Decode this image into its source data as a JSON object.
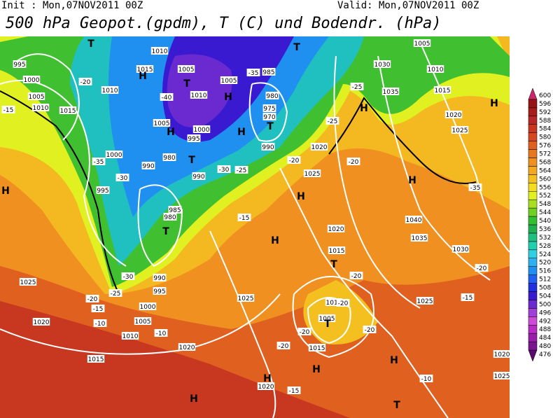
{
  "header": {
    "init": "Init : Mon,07NOV2011 00Z",
    "valid": "Valid: Mon,07NOV2011 00Z",
    "title": "500 hPa Geopot.(gpdm), T (C) und Bodendr. (hPa)"
  },
  "colorbar": {
    "levels": [
      476,
      480,
      484,
      488,
      492,
      496,
      500,
      504,
      508,
      512,
      516,
      520,
      524,
      528,
      532,
      536,
      540,
      544,
      548,
      552,
      556,
      560,
      564,
      568,
      572,
      576,
      580,
      584,
      588,
      592,
      596,
      600
    ],
    "colors": [
      "#5a0a6e",
      "#7a1490",
      "#9a1eaa",
      "#b82cc4",
      "#d04ad8",
      "#a040d8",
      "#6a2ad0",
      "#3a1ad0",
      "#2030e0",
      "#2060f0",
      "#2090f0",
      "#30b0f0",
      "#30d0e0",
      "#20d0b0",
      "#20c080",
      "#20b050",
      "#30c030",
      "#70d020",
      "#a8e020",
      "#e0f020",
      "#f4dc20",
      "#f4c020",
      "#f4a820",
      "#f09020",
      "#e87820",
      "#e06020",
      "#d84820",
      "#c83820",
      "#b82828",
      "#a81c1c",
      "#981414",
      "#c8286a"
    ]
  },
  "map": {
    "labels": [
      "1010",
      "1015",
      "1005",
      "1010",
      "1005",
      "985",
      "980",
      "975",
      "970",
      "990",
      "995",
      "1000",
      "1005",
      "1010",
      "1015",
      "1010",
      "1005",
      "1000",
      "995",
      "1000",
      "995",
      "990",
      "980",
      "990",
      "985",
      "980",
      "990",
      "995",
      "1000",
      "1005",
      "1010",
      "1015",
      "1020",
      "1025",
      "1020",
      "1025",
      "1020",
      "1025",
      "1020",
      "1015",
      "1010",
      "1005",
      "1015",
      "1020",
      "1030",
      "1035",
      "1005",
      "1010",
      "1015",
      "1020",
      "1025",
      "1040",
      "1035",
      "1030",
      "1025",
      "1020",
      "1025",
      "H",
      "T",
      "T",
      "H",
      "H",
      "H",
      "T",
      "T",
      "H",
      "T",
      "H",
      "H",
      "T",
      "T",
      "H",
      "H",
      "H",
      "H",
      "T",
      "H",
      "H",
      "H",
      "T",
      "-20",
      "-15",
      "-35",
      "-30",
      "-30",
      "-25",
      "-40",
      "-35",
      "-25",
      "-20",
      "-20",
      "-15",
      "-30",
      "-25",
      "-20",
      "-15",
      "-10",
      "-10",
      "-20",
      "-20",
      "-20",
      "-20",
      "-20",
      "-15",
      "-10",
      "-15",
      "-20",
      "-35",
      "-25"
    ]
  }
}
